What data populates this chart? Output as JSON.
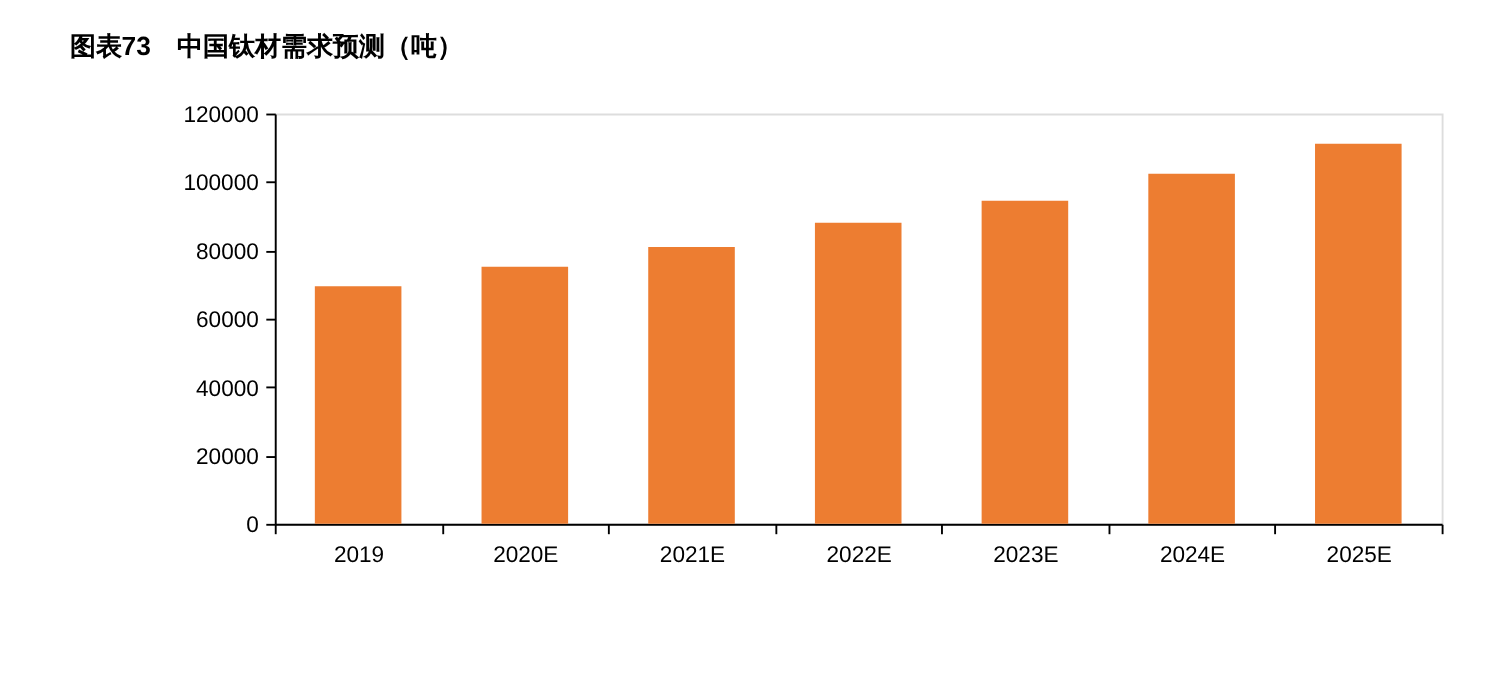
{
  "chart_data": {
    "type": "bar",
    "title": "图表73　中国钛材需求预测（吨）",
    "categories": [
      "2019",
      "2020E",
      "2021E",
      "2022E",
      "2023E",
      "2024E",
      "2025E"
    ],
    "values": [
      69500,
      75200,
      81000,
      88100,
      94500,
      102400,
      111200
    ],
    "color": "#ed7d31",
    "ylim": [
      0,
      120000
    ],
    "yticks": [
      0,
      20000,
      40000,
      60000,
      80000,
      100000,
      120000
    ],
    "grid": false
  }
}
